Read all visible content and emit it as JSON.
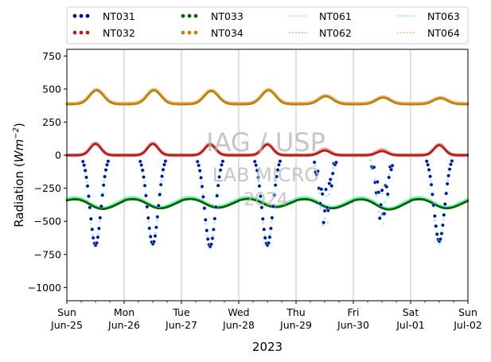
{
  "chart_data": {
    "type": "scatter",
    "title": "",
    "ylabel_main": "Radiation (",
    "ylabel_unit": "Wm",
    "ylabel_exp": "−2",
    "ylabel_close": ")",
    "xlabel": "2023",
    "ylim": [
      -1100,
      800
    ],
    "xlim_days": [
      0,
      7
    ],
    "y_ticks": [
      750,
      500,
      250,
      0,
      -250,
      -500,
      -750,
      -1000
    ],
    "y_tick_labels": [
      "750",
      "500",
      "250",
      "0",
      "−250",
      "−500",
      "−750",
      "−1000"
    ],
    "x_ticks": [
      {
        "day": "Sun",
        "date": "Jun-25"
      },
      {
        "day": "Mon",
        "date": "Jun-26"
      },
      {
        "day": "Tue",
        "date": "Jun-27"
      },
      {
        "day": "Wed",
        "date": "Jun-28"
      },
      {
        "day": "Thu",
        "date": "Jun-29"
      },
      {
        "day": "Fri",
        "date": "Jun-30"
      },
      {
        "day": "Sat",
        "date": "Jul-01"
      },
      {
        "day": "Sun",
        "date": "Jul-02"
      }
    ],
    "grid": "vertical",
    "legend_position": "top",
    "series": [
      {
        "name": "NT031",
        "color": "#00008b",
        "style": "dots",
        "base": 0,
        "day_amp": [
          680,
          670,
          690,
          680,
          530,
          520,
          650
        ]
      },
      {
        "name": "NT032",
        "color": "#b22222",
        "style": "dots",
        "base": 0,
        "day_amp": [
          85,
          85,
          80,
          80,
          35,
          30,
          75
        ]
      },
      {
        "name": "NT033",
        "color": "#006400",
        "style": "dots",
        "base": -340,
        "day_amp": [
          55,
          50,
          45,
          40,
          50,
          60,
          50
        ]
      },
      {
        "name": "NT034",
        "color": "#b8860b",
        "style": "dots",
        "base": 385,
        "day_amp": [
          105,
          105,
          100,
          105,
          60,
          50,
          45
        ]
      },
      {
        "name": "NT061",
        "color": "#7fd8ff",
        "style": "sparse",
        "base": 0,
        "day_amp": [
          690,
          680,
          700,
          690,
          600,
          560,
          670
        ]
      },
      {
        "name": "NT062",
        "color": "#ff8c7a",
        "style": "sparse",
        "base": 0,
        "day_amp": [
          90,
          90,
          85,
          85,
          45,
          40,
          80
        ]
      },
      {
        "name": "NT063",
        "color": "#66f0a0",
        "style": "sparse",
        "base": -330,
        "day_amp": [
          60,
          55,
          50,
          45,
          55,
          65,
          55
        ]
      },
      {
        "name": "NT064",
        "color": "#f5b07a",
        "style": "sparse",
        "base": 390,
        "day_amp": [
          105,
          105,
          100,
          105,
          60,
          50,
          45
        ]
      }
    ],
    "watermark": [
      "IAG / USP",
      "LAB MICRO",
      "2024"
    ]
  }
}
